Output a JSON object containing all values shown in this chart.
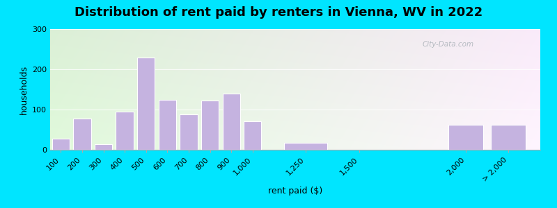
{
  "title": "Distribution of rent paid by renters in Vienna, WV in 2022",
  "xlabel": "rent paid ($)",
  "ylabel": "households",
  "bar_color": "#c5b3e0",
  "bar_edge_color": "#b39ddb",
  "background_outer": "#00e5ff",
  "tick_labels": [
    "100",
    "200",
    "300",
    "400",
    "500",
    "600",
    "700",
    "800",
    "900",
    "1,000",
    "1,250",
    "1,500",
    "2,000",
    "> 2,000"
  ],
  "tick_positions": [
    100,
    200,
    300,
    400,
    500,
    600,
    700,
    800,
    900,
    1000,
    1250,
    1500,
    2000,
    2200
  ],
  "bar_centers": [
    100,
    200,
    300,
    400,
    500,
    600,
    700,
    800,
    900,
    1000,
    1250,
    1500,
    2000,
    2200
  ],
  "bar_widths": [
    90,
    90,
    90,
    90,
    90,
    90,
    90,
    90,
    90,
    90,
    220,
    220,
    180,
    180
  ],
  "values": [
    28,
    78,
    13,
    95,
    230,
    125,
    88,
    122,
    140,
    70,
    18,
    0,
    62,
    62
  ],
  "ylim": [
    0,
    300
  ],
  "yticks": [
    0,
    100,
    200,
    300
  ],
  "watermark": "City-Data.com",
  "title_fontsize": 13,
  "axis_label_fontsize": 9,
  "tick_fontsize": 8
}
